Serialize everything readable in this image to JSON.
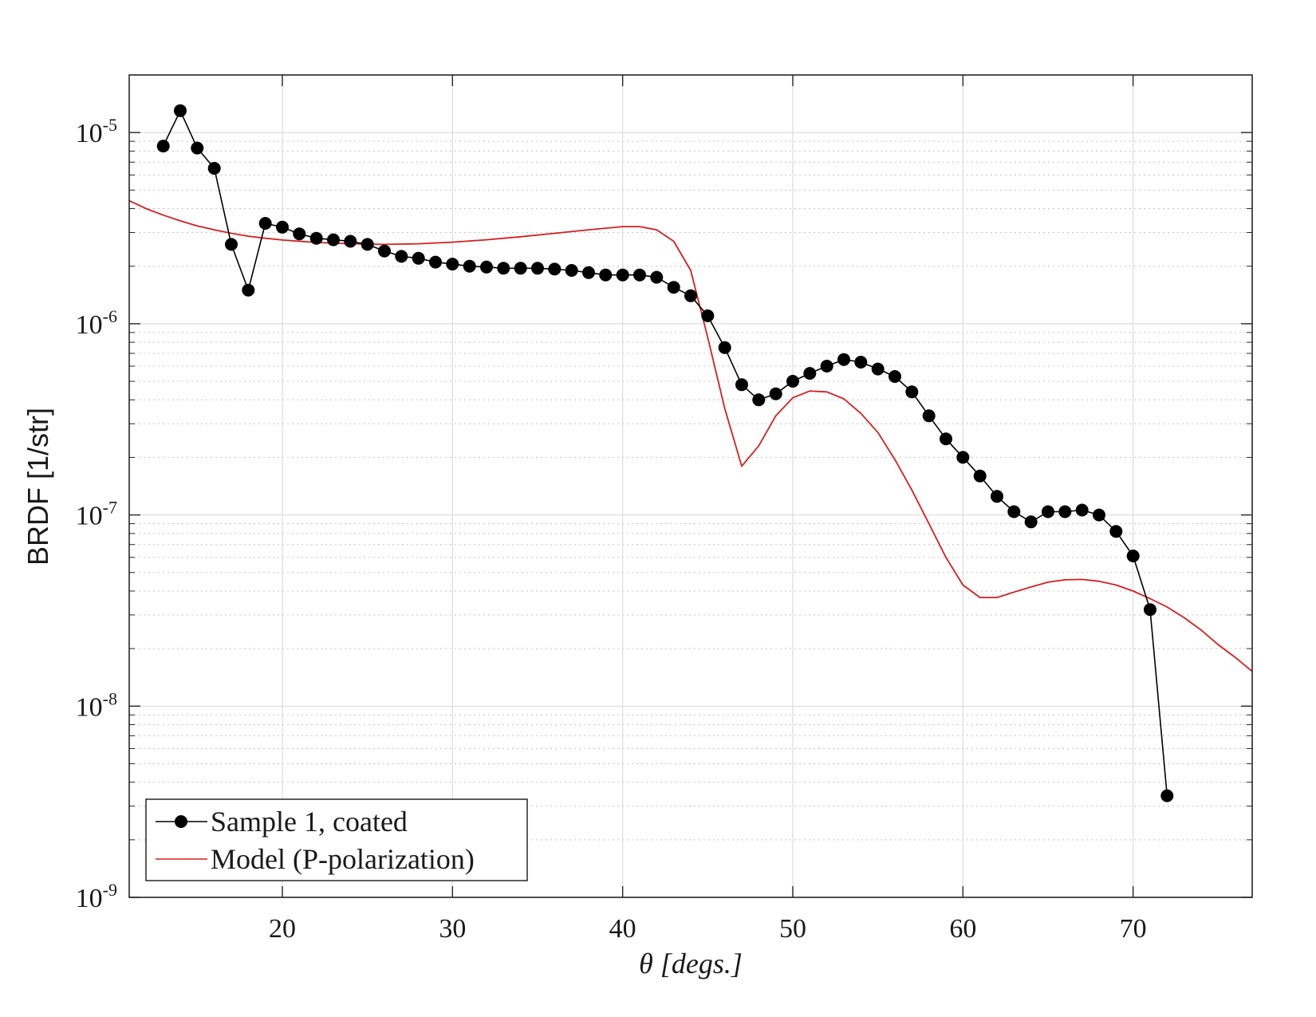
{
  "chart_data": {
    "type": "line",
    "title": "",
    "xlabel": "θ  [degs.]",
    "ylabel": "BRDF [1/str]",
    "xlim": [
      11,
      77
    ],
    "ylim": [
      1e-09,
      2e-05
    ],
    "yscale": "log",
    "grid": true,
    "minor_grid": "dotted",
    "legend_position": "bottom-left",
    "x_ticks": [
      20,
      30,
      40,
      50,
      60,
      70
    ],
    "x_tick_labels": [
      "20",
      "30",
      "40",
      "50",
      "60",
      "70"
    ],
    "y_ticks": [
      1e-09,
      1e-08,
      1e-07,
      1e-06,
      1e-05
    ],
    "y_tick_labels": [
      {
        "base": "10",
        "exp": "-9"
      },
      {
        "base": "10",
        "exp": "-8"
      },
      {
        "base": "10",
        "exp": "-7"
      },
      {
        "base": "10",
        "exp": "-6"
      },
      {
        "base": "10",
        "exp": "-5"
      }
    ],
    "series": [
      {
        "name": "Sample 1, coated",
        "color": "#000000",
        "marker": "circle",
        "x": [
          13,
          14,
          15,
          16,
          17,
          18,
          19,
          20,
          21,
          22,
          23,
          24,
          25,
          26,
          27,
          28,
          29,
          30,
          31,
          32,
          33,
          34,
          35,
          36,
          37,
          38,
          39,
          40,
          41,
          42,
          43,
          44,
          45,
          46,
          47,
          48,
          49,
          50,
          51,
          52,
          53,
          54,
          55,
          56,
          57,
          58,
          59,
          60,
          61,
          62,
          63,
          64,
          65,
          66,
          67,
          68,
          69,
          70,
          71,
          72
        ],
        "y": [
          8.5e-06,
          1.3e-05,
          8.3e-06,
          6.5e-06,
          2.6e-06,
          1.5e-06,
          3.35e-06,
          3.2e-06,
          2.95e-06,
          2.8e-06,
          2.75e-06,
          2.7e-06,
          2.6e-06,
          2.4e-06,
          2.25e-06,
          2.2e-06,
          2.1e-06,
          2.05e-06,
          2e-06,
          1.98e-06,
          1.95e-06,
          1.95e-06,
          1.95e-06,
          1.93e-06,
          1.9e-06,
          1.85e-06,
          1.8e-06,
          1.8e-06,
          1.8e-06,
          1.75e-06,
          1.55e-06,
          1.4e-06,
          1.1e-06,
          7.5e-07,
          4.8e-07,
          4e-07,
          4.3e-07,
          5e-07,
          5.5e-07,
          6e-07,
          6.5e-07,
          6.3e-07,
          5.8e-07,
          5.3e-07,
          4.4e-07,
          3.3e-07,
          2.5e-07,
          2e-07,
          1.6e-07,
          1.25e-07,
          1.04e-07,
          9.2e-08,
          1.04e-07,
          1.04e-07,
          1.06e-07,
          1e-07,
          8.2e-08,
          6.1e-08,
          3.2e-08,
          3.4e-09
        ]
      },
      {
        "name": "Model (P-polarization)",
        "color": "#d81e1e",
        "marker": "none",
        "x": [
          11,
          12,
          13,
          14,
          15,
          16,
          17,
          18,
          19,
          20,
          22,
          24,
          26,
          28,
          30,
          32,
          34,
          36,
          38,
          40,
          41,
          42,
          43,
          44,
          45,
          46,
          47,
          48,
          49,
          50,
          51,
          52,
          53,
          54,
          55,
          56,
          57,
          58,
          59,
          60,
          61,
          62,
          63,
          64,
          65,
          66,
          67,
          68,
          69,
          70,
          71,
          72,
          73,
          74,
          75,
          76,
          77
        ],
        "y": [
          4.4e-06,
          4e-06,
          3.7e-06,
          3.45e-06,
          3.25e-06,
          3.1e-06,
          2.97e-06,
          2.87e-06,
          2.8e-06,
          2.74e-06,
          2.66e-06,
          2.62e-06,
          2.6e-06,
          2.62e-06,
          2.67e-06,
          2.75e-06,
          2.85e-06,
          2.97e-06,
          3.1e-06,
          3.22e-06,
          3.22e-06,
          3.1e-06,
          2.7e-06,
          1.9e-06,
          8.5e-07,
          3.6e-07,
          1.8e-07,
          2.3e-07,
          3.3e-07,
          4.1e-07,
          4.45e-07,
          4.4e-07,
          4.05e-07,
          3.4e-07,
          2.7e-07,
          1.95e-07,
          1.35e-07,
          9e-08,
          6e-08,
          4.3e-08,
          3.7e-08,
          3.7e-08,
          3.95e-08,
          4.2e-08,
          4.45e-08,
          4.58e-08,
          4.6e-08,
          4.5e-08,
          4.3e-08,
          4e-08,
          3.65e-08,
          3.3e-08,
          2.9e-08,
          2.5e-08,
          2.1e-08,
          1.8e-08,
          1.52e-08
        ]
      }
    ]
  }
}
